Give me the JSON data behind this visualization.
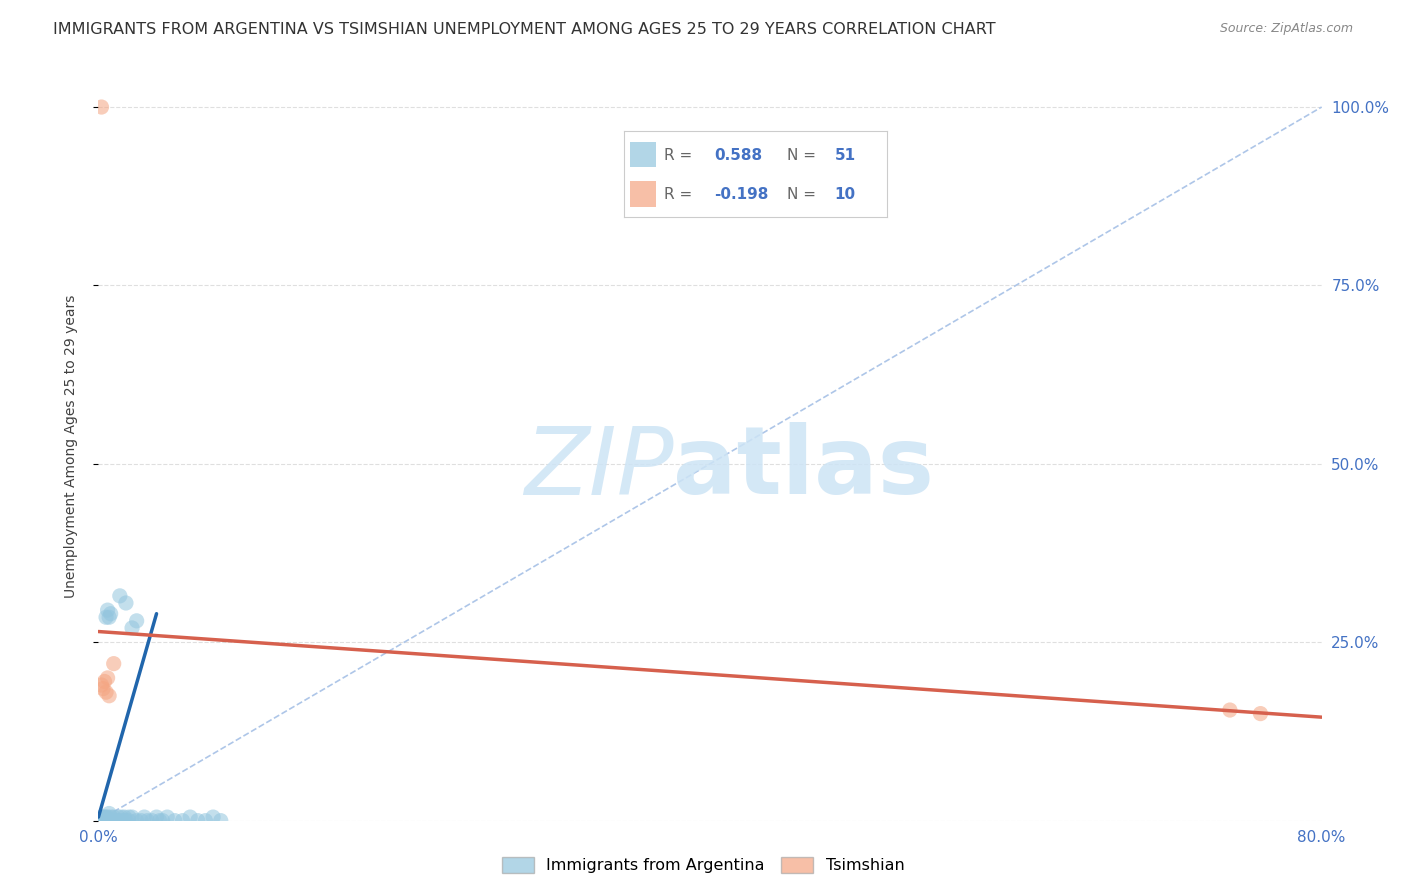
{
  "title": "IMMIGRANTS FROM ARGENTINA VS TSIMSHIAN UNEMPLOYMENT AMONG AGES 25 TO 29 YEARS CORRELATION CHART",
  "source": "Source: ZipAtlas.com",
  "ylabel": "Unemployment Among Ages 25 to 29 years",
  "xlim": [
    0.0,
    0.8
  ],
  "ylim": [
    0.0,
    1.05
  ],
  "xticks": [
    0.0,
    0.1,
    0.2,
    0.3,
    0.4,
    0.5,
    0.6,
    0.7,
    0.8
  ],
  "xticklabels": [
    "0.0%",
    "",
    "",
    "",
    "",
    "",
    "",
    "",
    "80.0%"
  ],
  "ytick_positions": [
    0.0,
    0.25,
    0.5,
    0.75,
    1.0
  ],
  "yticklabels": [
    "",
    "25.0%",
    "50.0%",
    "75.0%",
    "100.0%"
  ],
  "blue_R": "0.588",
  "blue_N": "51",
  "pink_R": "-0.198",
  "pink_N": "10",
  "blue_color": "#92c5de",
  "blue_line_color": "#2166ac",
  "pink_color": "#f4a582",
  "pink_line_color": "#d6604d",
  "blue_dots": [
    [
      0.001,
      0.0
    ],
    [
      0.002,
      0.0
    ],
    [
      0.002,
      0.005
    ],
    [
      0.003,
      0.0
    ],
    [
      0.003,
      0.005
    ],
    [
      0.004,
      0.0
    ],
    [
      0.004,
      0.005
    ],
    [
      0.005,
      0.0
    ],
    [
      0.005,
      0.005
    ],
    [
      0.006,
      0.0
    ],
    [
      0.006,
      0.005
    ],
    [
      0.007,
      0.0
    ],
    [
      0.007,
      0.01
    ],
    [
      0.008,
      0.005
    ],
    [
      0.009,
      0.0
    ],
    [
      0.01,
      0.0
    ],
    [
      0.01,
      0.005
    ],
    [
      0.012,
      0.0
    ],
    [
      0.013,
      0.005
    ],
    [
      0.014,
      0.0
    ],
    [
      0.015,
      0.005
    ],
    [
      0.016,
      0.0
    ],
    [
      0.017,
      0.005
    ],
    [
      0.018,
      0.0
    ],
    [
      0.02,
      0.0
    ],
    [
      0.02,
      0.005
    ],
    [
      0.022,
      0.005
    ],
    [
      0.025,
      0.0
    ],
    [
      0.028,
      0.0
    ],
    [
      0.03,
      0.005
    ],
    [
      0.032,
      0.0
    ],
    [
      0.035,
      0.0
    ],
    [
      0.038,
      0.005
    ],
    [
      0.04,
      0.0
    ],
    [
      0.042,
      0.0
    ],
    [
      0.045,
      0.005
    ],
    [
      0.05,
      0.0
    ],
    [
      0.055,
      0.0
    ],
    [
      0.06,
      0.005
    ],
    [
      0.065,
      0.0
    ],
    [
      0.07,
      0.0
    ],
    [
      0.075,
      0.005
    ],
    [
      0.08,
      0.0
    ],
    [
      0.014,
      0.315
    ],
    [
      0.005,
      0.285
    ],
    [
      0.007,
      0.285
    ],
    [
      0.006,
      0.295
    ],
    [
      0.008,
      0.29
    ],
    [
      0.022,
      0.27
    ],
    [
      0.025,
      0.28
    ],
    [
      0.018,
      0.305
    ]
  ],
  "pink_dots": [
    [
      0.002,
      1.0
    ],
    [
      0.004,
      0.195
    ],
    [
      0.006,
      0.2
    ],
    [
      0.003,
      0.185
    ],
    [
      0.007,
      0.175
    ],
    [
      0.002,
      0.19
    ],
    [
      0.005,
      0.18
    ],
    [
      0.74,
      0.155
    ],
    [
      0.76,
      0.15
    ],
    [
      0.01,
      0.22
    ]
  ],
  "blue_trend_x": [
    0.0,
    0.038
  ],
  "blue_trend_y": [
    0.005,
    0.29
  ],
  "pink_trend_x": [
    0.0,
    0.8
  ],
  "pink_trend_y": [
    0.265,
    0.145
  ],
  "ref_line_x": [
    0.0,
    0.8
  ],
  "ref_line_y": [
    0.0,
    1.0
  ],
  "watermark_zip": "ZIP",
  "watermark_atlas": "atlas",
  "background_color": "#ffffff",
  "grid_color": "#d8d8d8",
  "title_fontsize": 11.5,
  "axis_label_fontsize": 10,
  "tick_fontsize": 11,
  "legend_blue_label": "Immigrants from Argentina",
  "legend_pink_label": "Tsimshian"
}
